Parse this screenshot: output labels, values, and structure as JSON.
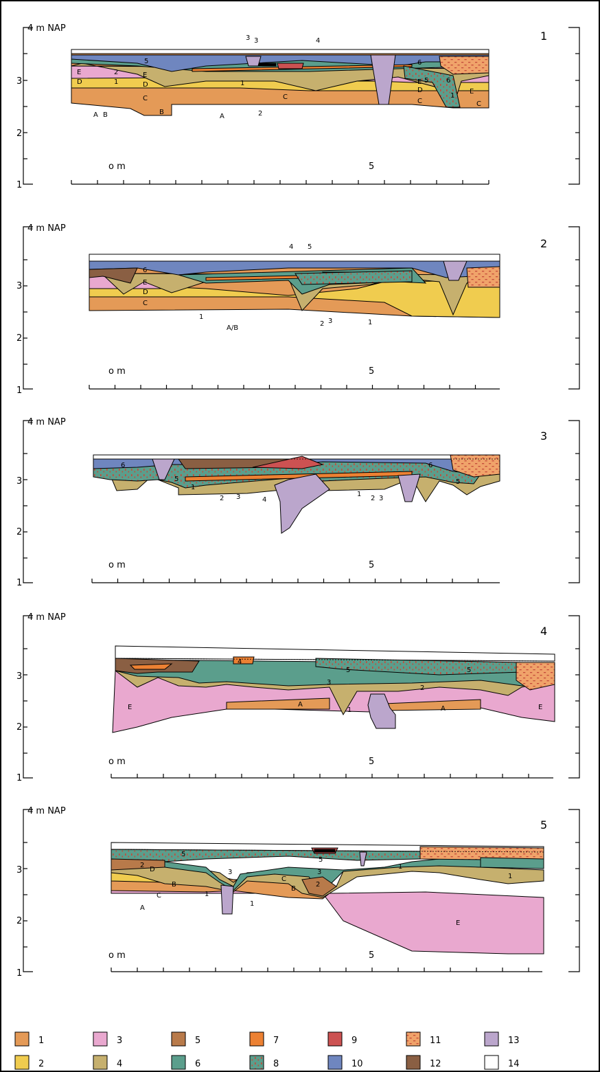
{
  "axis": {
    "top_label": "4 m NAP",
    "y_labels": [
      "3",
      "2",
      "1"
    ],
    "x_labels": [
      "o m",
      "5"
    ]
  },
  "panels": [
    {
      "number": "1",
      "labels": [
        "A",
        "B",
        "B",
        "A",
        "C",
        "C",
        "C",
        "D",
        "D",
        "D",
        "E",
        "E",
        "E",
        "E",
        "C",
        "1",
        "1",
        "1",
        "2",
        "2",
        "3",
        "3",
        "4",
        "5",
        "5",
        "6",
        "6"
      ]
    },
    {
      "number": "2",
      "labels": [
        "A/B",
        "C",
        "D",
        "E",
        "6",
        "1",
        "1",
        "2",
        "3",
        "4",
        "5"
      ]
    },
    {
      "number": "3",
      "labels": [
        "6",
        "6",
        "5",
        "5",
        "1",
        "1",
        "2",
        "2",
        "3",
        "3",
        "4"
      ]
    },
    {
      "number": "4",
      "labels": [
        "E",
        "E",
        "A",
        "A",
        "1",
        "2",
        "3",
        "4",
        "5",
        "5"
      ]
    },
    {
      "number": "5",
      "labels": [
        "A",
        "B",
        "B",
        "C",
        "C",
        "D",
        "E",
        "1",
        "1",
        "1",
        "1",
        "2",
        "2",
        "3",
        "3",
        "5",
        "5"
      ]
    }
  ],
  "legend": [
    {
      "label": "1",
      "color": "#e49a57"
    },
    {
      "label": "2",
      "color": "#f0cc4f"
    },
    {
      "label": "3",
      "color": "#e9a8cf"
    },
    {
      "label": "4",
      "color": "#c6b06e"
    },
    {
      "label": "5",
      "color": "#b87a4a"
    },
    {
      "label": "6",
      "color": "#5b9e8c"
    },
    {
      "label": "7",
      "color": "#ec8133"
    },
    {
      "label": "8",
      "color": "#5b9e8c",
      "pattern": "red-dots"
    },
    {
      "label": "9",
      "color": "#cc5252"
    },
    {
      "label": "10",
      "color": "#6f86bf"
    },
    {
      "label": "11",
      "color": "#f0a36a",
      "pattern": "red-dashes"
    },
    {
      "label": "12",
      "color": "#8a5f43"
    },
    {
      "label": "13",
      "color": "#bba6cc"
    },
    {
      "label": "14",
      "color": "#ffffff"
    }
  ]
}
